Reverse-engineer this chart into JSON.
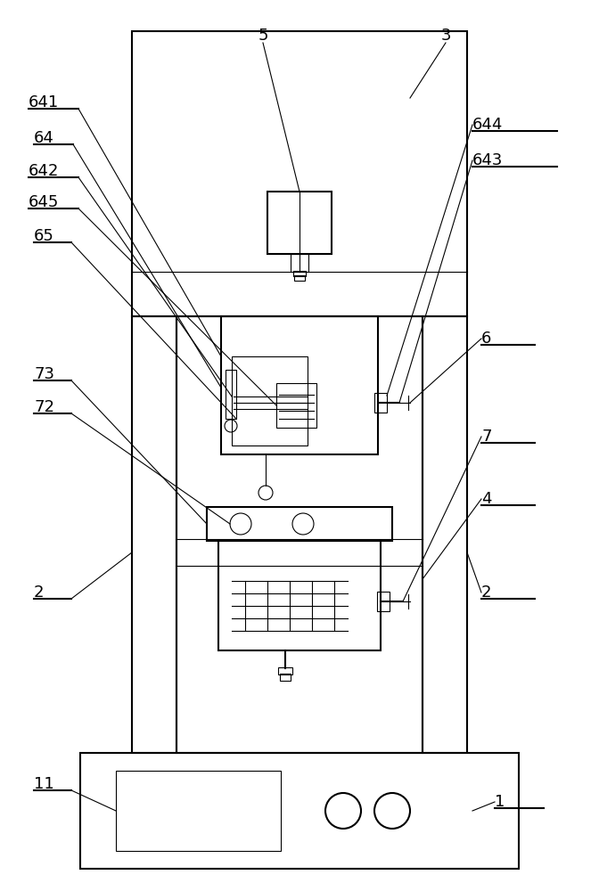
{
  "bg_color": "#ffffff",
  "line_color": "#000000",
  "lw_main": 1.5,
  "lw_thin": 0.8,
  "fig_width": 6.72,
  "fig_height": 10.0
}
